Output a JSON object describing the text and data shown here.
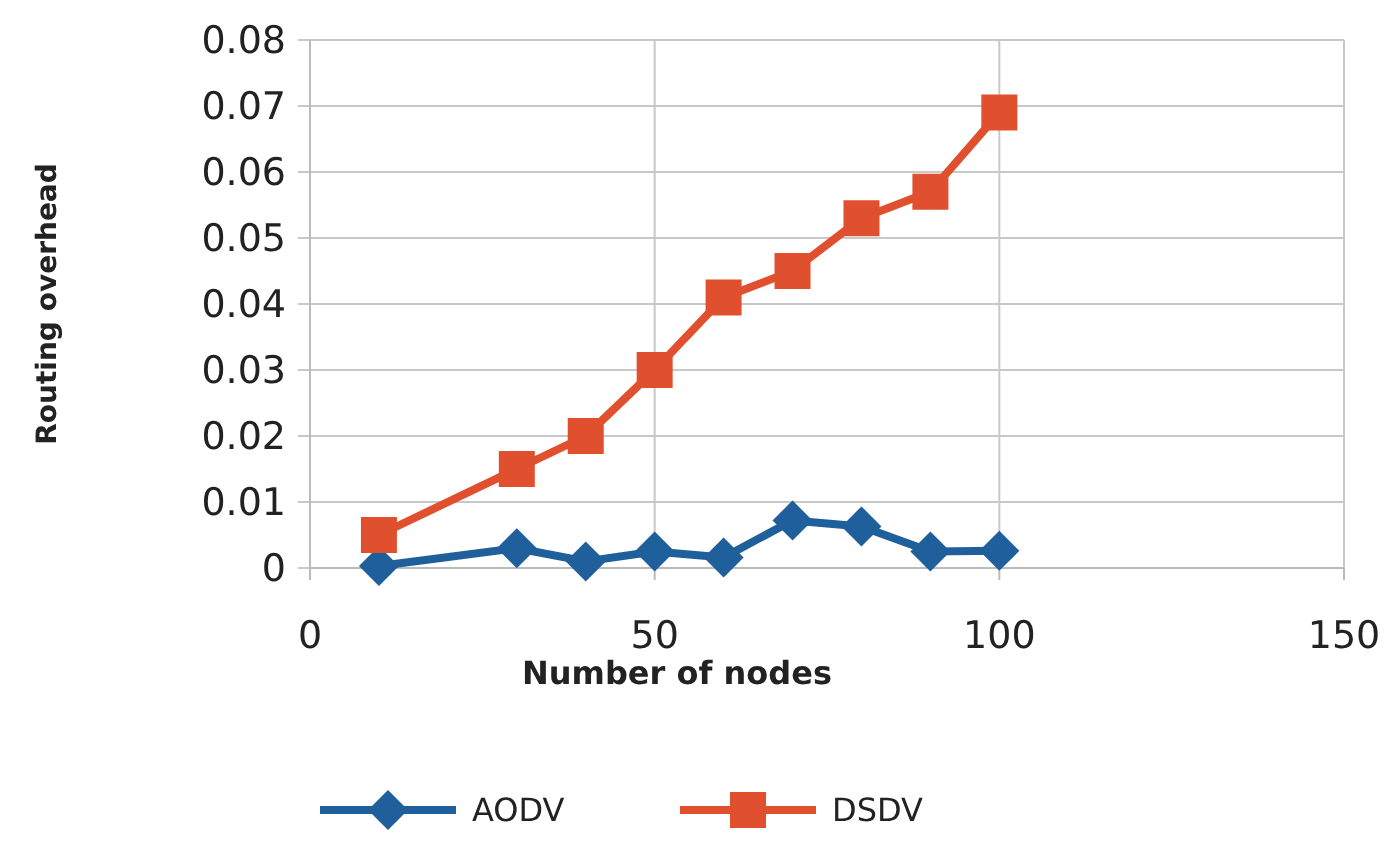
{
  "chart_data": {
    "type": "line",
    "xlabel": "Number of nodes",
    "ylabel": "Routing overhead",
    "x": [
      10,
      30,
      40,
      50,
      60,
      70,
      80,
      90,
      100
    ],
    "series": [
      {
        "name": "AODV",
        "color": "#1f5f9c",
        "marker": "diamond",
        "values": [
          0.0003,
          0.003,
          0.001,
          0.0025,
          0.0016,
          0.0072,
          0.0063,
          0.0025,
          0.0026
        ]
      },
      {
        "name": "DSDV",
        "color": "#e0502e",
        "marker": "square",
        "values": [
          0.005,
          0.015,
          0.02,
          0.03,
          0.041,
          0.045,
          0.053,
          0.057,
          0.069
        ]
      }
    ],
    "xlim": [
      0,
      150
    ],
    "xticks": [
      0,
      50,
      100,
      150
    ],
    "ylim": [
      0,
      0.08
    ],
    "yticks": [
      0,
      0.01,
      0.02,
      0.03,
      0.04,
      0.05,
      0.06,
      0.07,
      0.08
    ],
    "grid": true,
    "legend": "bottom"
  }
}
